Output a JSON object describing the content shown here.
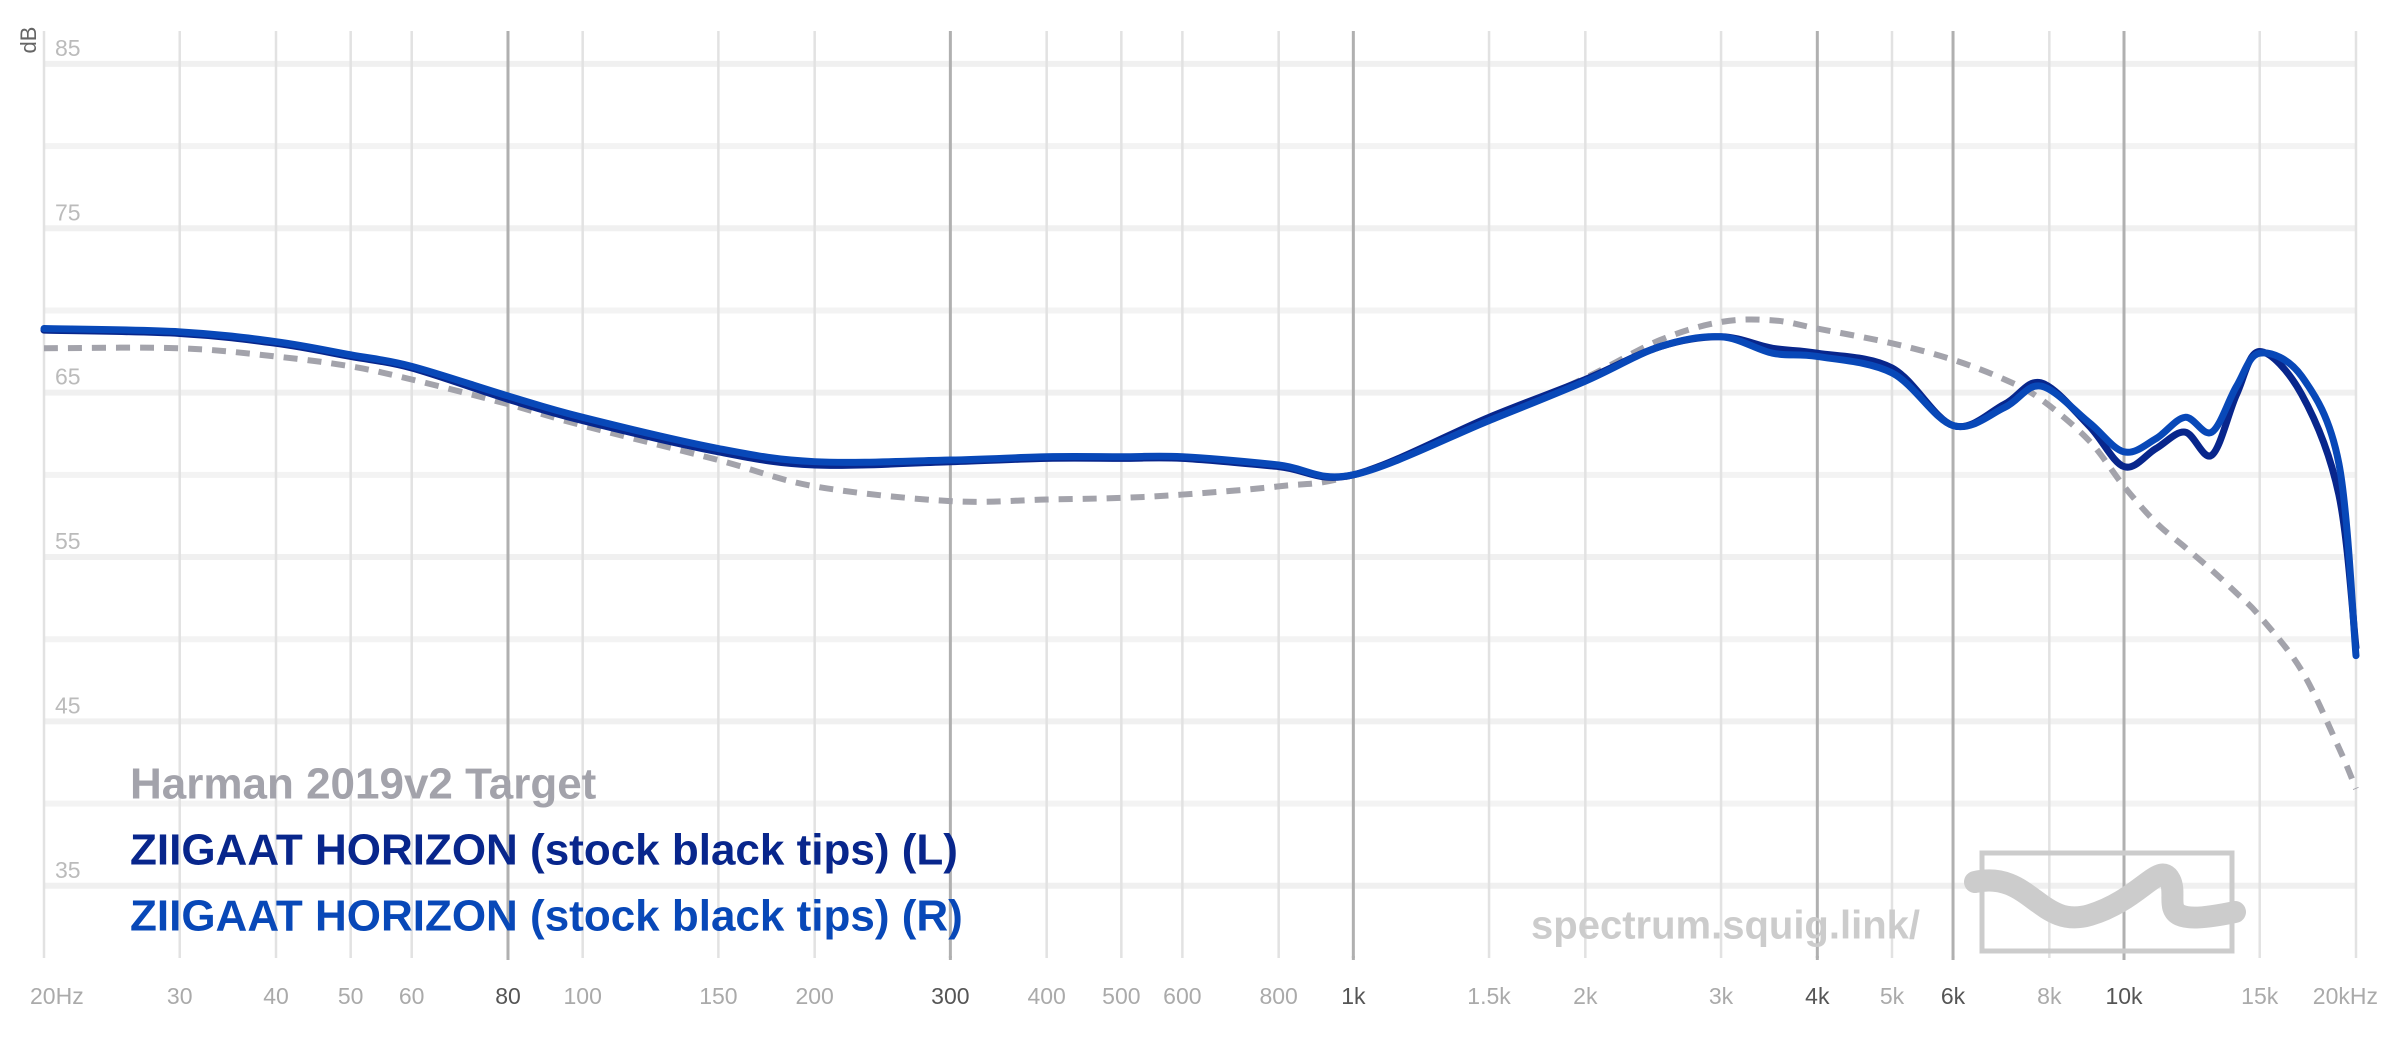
{
  "chart_data": {
    "type": "line",
    "xscale": "log",
    "yunit": "dB",
    "watermark": "spectrum.squig.link/",
    "xlim": [
      20,
      20000
    ],
    "ylim": [
      30,
      87
    ],
    "yticks": [
      35,
      45,
      55,
      65,
      75,
      85
    ],
    "yminor": [
      40,
      50,
      60,
      70,
      80
    ],
    "xticks": [
      {
        "value": 20,
        "label": "20Hz"
      },
      30,
      40,
      50,
      60,
      80,
      100,
      150,
      200,
      300,
      400,
      500,
      600,
      800,
      {
        "value": 1000,
        "label": "1k"
      },
      {
        "value": 1500,
        "label": "1.5k"
      },
      {
        "value": 2000,
        "label": "2k"
      },
      {
        "value": 3000,
        "label": "3k"
      },
      {
        "value": 4000,
        "label": "4k"
      },
      {
        "value": 5000,
        "label": "5k"
      },
      {
        "value": 6000,
        "label": "6k"
      },
      {
        "value": 8000,
        "label": "8k"
      },
      {
        "value": 10000,
        "label": "10k"
      },
      {
        "value": 15000,
        "label": "15k"
      },
      {
        "value": 20000,
        "label": "20kHz"
      }
    ],
    "xmajor": [
      80,
      300,
      1000,
      4000,
      6000,
      10000
    ],
    "x": [
      20,
      30,
      40,
      50,
      60,
      80,
      100,
      150,
      200,
      300,
      400,
      500,
      600,
      800,
      1000,
      1500,
      2000,
      2500,
      3000,
      3500,
      4000,
      5000,
      6000,
      7000,
      7800,
      9000,
      10000,
      11000,
      12000,
      13000,
      14000,
      15000,
      17000,
      19000,
      20000
    ],
    "series": [
      {
        "name": "Harman 2019v2 Target",
        "color": "#a3a3ab",
        "dashed": true,
        "values": [
          67.7,
          67.7,
          67.2,
          66.6,
          65.8,
          64.3,
          63.0,
          60.9,
          59.3,
          58.4,
          58.5,
          58.6,
          58.8,
          59.3,
          60.0,
          63.3,
          65.9,
          68.2,
          69.3,
          69.4,
          68.9,
          68.0,
          67.0,
          65.8,
          64.6,
          62.1,
          59.3,
          57.1,
          55.6,
          54.2,
          52.8,
          51.4,
          48.1,
          43.4,
          40.9
        ]
      },
      {
        "name": "ZIIGAAT HORIZON (stock black tips) (L)",
        "color": "#08268c",
        "values": [
          68.8,
          68.6,
          68.0,
          67.2,
          66.5,
          64.6,
          63.3,
          61.4,
          60.6,
          60.8,
          61.0,
          61.0,
          61.0,
          60.5,
          60.0,
          63.5,
          65.8,
          67.8,
          68.4,
          67.7,
          67.4,
          66.5,
          63.0,
          64.3,
          65.6,
          63.0,
          60.5,
          61.6,
          62.6,
          61.2,
          64.9,
          67.5,
          64.9,
          58.8,
          49.5
        ]
      },
      {
        "name": "ZIIGAAT HORIZON (stock black tips) (R)",
        "color": "#0848b8",
        "values": [
          68.9,
          68.7,
          68.1,
          67.3,
          66.6,
          64.8,
          63.5,
          61.6,
          60.8,
          60.9,
          61.1,
          61.1,
          61.1,
          60.6,
          60.0,
          63.3,
          65.7,
          67.8,
          68.4,
          67.4,
          67.2,
          66.2,
          63.0,
          64.1,
          65.4,
          63.2,
          61.4,
          62.2,
          63.5,
          62.6,
          65.4,
          67.4,
          66.0,
          60.7,
          49.0
        ]
      }
    ]
  }
}
